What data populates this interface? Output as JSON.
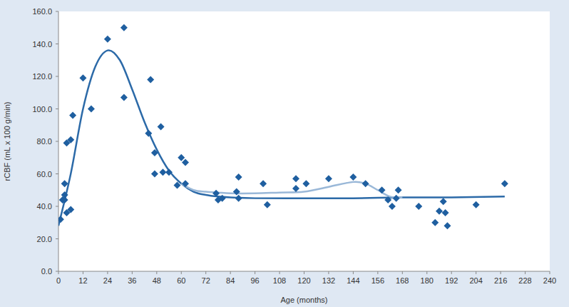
{
  "chart_data": {
    "type": "scatter",
    "x_label": "Age (months)",
    "y_label": "rCBF (mL x 100 g/min)",
    "xlim": [
      0,
      240
    ],
    "xticks": [
      0,
      12,
      24,
      36,
      48,
      60,
      72,
      84,
      96,
      108,
      120,
      132,
      144,
      156,
      168,
      180,
      192,
      204,
      216,
      228,
      240
    ],
    "ylim": [
      0,
      160
    ],
    "yticks": [
      {
        "value": 0,
        "label": "0.0"
      },
      {
        "value": 20,
        "label": "20.0"
      },
      {
        "value": 40,
        "label": "40.0"
      },
      {
        "value": 60,
        "label": "60.0"
      },
      {
        "value": 80,
        "label": "80.0"
      },
      {
        "value": 100,
        "label": "100.0"
      },
      {
        "value": 120,
        "label": "120.0"
      },
      {
        "value": 140,
        "label": "140.0"
      },
      {
        "value": 160,
        "label": "160.0"
      }
    ],
    "grid": false,
    "series": [
      {
        "type": "line",
        "color": "#2c6aa8",
        "line_style": "solid",
        "x": [
          0,
          6,
          12,
          18,
          24,
          30,
          36,
          42,
          48,
          54,
          60,
          66,
          72,
          78,
          84,
          96,
          120,
          144,
          168,
          192,
          218
        ],
        "values": [
          28,
          60,
          100,
          126,
          136,
          130,
          112,
          92,
          75,
          62,
          54,
          49,
          47,
          46,
          45.5,
          45,
          45,
          45,
          45.5,
          45.5,
          46
        ]
      },
      {
        "type": "line",
        "color": "#9ab8d8",
        "line_style": "solid",
        "x": [
          60,
          66,
          72,
          78,
          84,
          96,
          108,
          120,
          132,
          144,
          150,
          156,
          162,
          168
        ],
        "values": [
          54,
          50,
          49,
          48.5,
          48,
          48,
          48.5,
          49,
          52,
          55,
          54,
          50,
          46,
          45.5
        ]
      },
      {
        "type": "scatter",
        "color": "#1f5fa0",
        "marker": "diamond",
        "x": [
          1,
          2,
          3,
          3,
          3,
          4,
          4,
          6,
          6,
          7,
          12,
          16,
          24,
          32,
          32,
          45,
          44,
          47,
          47,
          50,
          51,
          54,
          58,
          60,
          62,
          62,
          77,
          78,
          80,
          87,
          88,
          88,
          100,
          102,
          116,
          116,
          121,
          132,
          144,
          150,
          158,
          161,
          163,
          165,
          166,
          176,
          184,
          186,
          188,
          189,
          190,
          204,
          218
        ],
        "values": [
          32,
          44,
          54,
          47,
          44,
          36,
          79,
          38,
          81,
          96,
          119,
          100,
          143,
          150,
          107,
          118,
          85,
          73,
          60,
          89,
          61,
          61,
          53,
          70,
          54,
          67,
          48,
          44,
          45,
          49,
          58,
          45,
          54,
          41,
          57,
          51,
          54,
          57,
          58,
          54,
          50,
          44,
          40,
          45,
          50,
          40,
          30,
          37,
          43,
          36,
          28,
          41,
          54
        ]
      }
    ]
  }
}
